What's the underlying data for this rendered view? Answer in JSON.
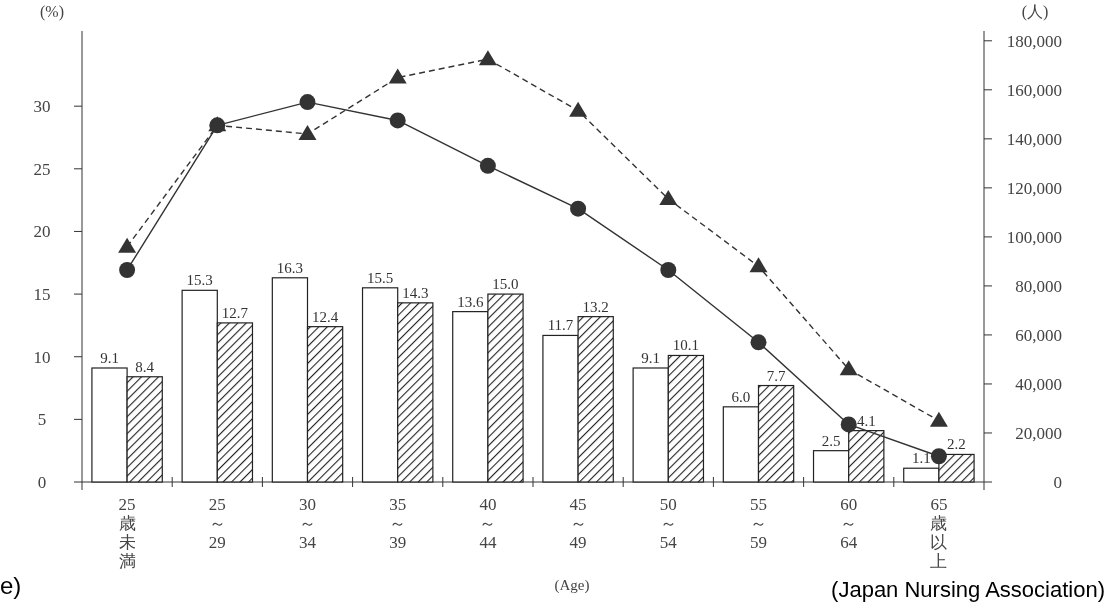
{
  "chart_data": {
    "type": "bar",
    "xlabel": "(Age)",
    "ylabel": "(%)",
    "y2label": "(人)",
    "categories": [
      "25歳未満",
      "25～29",
      "30～34",
      "35～39",
      "40～44",
      "45～49",
      "50～54",
      "55～59",
      "60～64",
      "65歳以上"
    ],
    "series": [
      {
        "color": "#ffffff",
        "values": [
          9.1,
          15.3,
          16.3,
          15.5,
          13.6,
          11.7,
          9.1,
          6.0,
          2.5,
          1.1
        ],
        "value_labels": [
          "9.1",
          "15.3",
          "16.3",
          "15.5",
          "13.6",
          "11.7",
          "9.1",
          "6.0",
          "2.5",
          "1.1"
        ]
      },
      {
        "color": "#222222",
        "values": [
          8.4,
          12.7,
          12.4,
          14.3,
          15.0,
          13.2,
          10.1,
          7.7,
          4.1,
          2.2
        ],
        "value_labels": [
          "8.4",
          "12.7",
          "12.4",
          "14.3",
          "15.0",
          "13.2",
          "10.1",
          "7.7",
          "4.1",
          "2.2"
        ]
      },
      {
        "type": "line",
        "axis": "y2",
        "color": "#333333",
        "marker": "circle",
        "line_style": "solid",
        "values": [
          86500,
          145500,
          155000,
          147500,
          129000,
          111500,
          86500,
          57000,
          23500,
          10500
        ]
      },
      {
        "type": "line",
        "axis": "y2",
        "color": "#333333",
        "marker": "triangle",
        "line_style": "dashed",
        "values": [
          96000,
          145500,
          142000,
          165000,
          172500,
          151500,
          115500,
          88000,
          46000,
          25000
        ]
      }
    ],
    "ylim": [
      0,
      36
    ],
    "yticks": [
      0,
      5,
      10,
      15,
      20,
      25,
      30
    ],
    "y2lim": [
      0,
      184000
    ],
    "y2ticks": [
      {
        "value": 0,
        "label": "0"
      },
      {
        "value": 20000,
        "label": "20,000"
      },
      {
        "value": 40000,
        "label": "40,000"
      },
      {
        "value": 60000,
        "label": "60,000"
      },
      {
        "value": 80000,
        "label": "80,000"
      },
      {
        "value": 100000,
        "label": "100,000"
      },
      {
        "value": 120000,
        "label": "120,000"
      },
      {
        "value": 140000,
        "label": "140,000"
      },
      {
        "value": 160000,
        "label": "160,000"
      },
      {
        "value": 180000,
        "label": "180,000"
      }
    ],
    "annotations": [
      "e)",
      "(Japan Nursing Association)"
    ]
  }
}
